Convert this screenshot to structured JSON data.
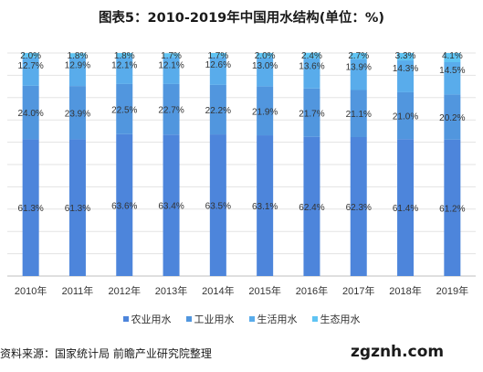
{
  "chart_data": {
    "type": "bar",
    "stacked": true,
    "title": "图表5：2010-2019年中国用水结构(单位：%)",
    "categories": [
      "2010年",
      "2011年",
      "2012年",
      "2013年",
      "2014年",
      "2015年",
      "2016年",
      "2017年",
      "2018年",
      "2019年"
    ],
    "series": [
      {
        "name": "农业用水",
        "color": "#4d85db",
        "values": [
          61.3,
          61.3,
          63.6,
          63.4,
          63.5,
          63.1,
          62.4,
          62.3,
          61.4,
          61.2
        ]
      },
      {
        "name": "工业用水",
        "color": "#5196de",
        "values": [
          24.0,
          23.9,
          22.5,
          22.7,
          22.2,
          21.9,
          21.7,
          21.1,
          21.0,
          20.2
        ]
      },
      {
        "name": "生活用水",
        "color": "#59aceb",
        "values": [
          12.7,
          12.9,
          12.1,
          12.1,
          12.6,
          13.0,
          13.6,
          13.9,
          14.3,
          14.5
        ]
      },
      {
        "name": "生态用水",
        "color": "#5fc4f3",
        "values": [
          2.0,
          1.8,
          1.8,
          1.7,
          1.7,
          2.0,
          2.4,
          2.7,
          3.3,
          4.1
        ]
      }
    ],
    "ylim": [
      0,
      100
    ],
    "grid": true,
    "legend_position": "bottom",
    "data_label_format": "one-decimal-percent"
  },
  "footer": {
    "source": "资料来源：国家统计局 前瞻产业研究院整理",
    "watermark": "zgznh.com"
  }
}
